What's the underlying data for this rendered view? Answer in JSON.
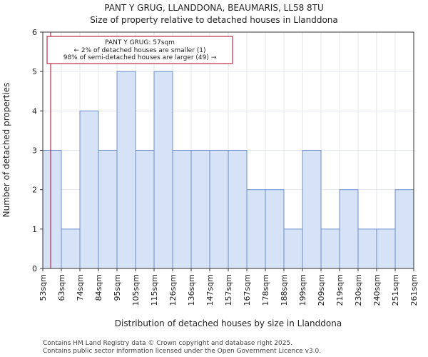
{
  "chart_data": {
    "type": "bar",
    "title_line1": "PANT Y GRUG, LLANDDONA, BEAUMARIS, LL58 8TU",
    "title_line2": "Size of property relative to detached houses in Llanddona",
    "xlabel": "Distribution of detached houses by size in Llanddona",
    "ylabel": "Number of detached properties",
    "ylim": [
      0,
      6
    ],
    "yticks": [
      "0",
      "1",
      "2",
      "3",
      "4",
      "5",
      "6"
    ],
    "edges": [
      "53sqm",
      "63sqm",
      "74sqm",
      "84sqm",
      "95sqm",
      "105sqm",
      "115sqm",
      "126sqm",
      "136sqm",
      "147sqm",
      "157sqm",
      "167sqm",
      "178sqm",
      "188sqm",
      "199sqm",
      "209sqm",
      "219sqm",
      "230sqm",
      "240sqm",
      "251sqm",
      "261sqm"
    ],
    "values": [
      3,
      1,
      4,
      3,
      5,
      3,
      5,
      3,
      3,
      3,
      3,
      2,
      2,
      1,
      3,
      1,
      2,
      1,
      1,
      2
    ],
    "subject_size_sqm": 57,
    "annotation": {
      "line1": "PANT Y GRUG: 57sqm",
      "line2": "← 2% of detached houses are smaller (1)",
      "line3": "98% of semi-detached houses are larger (49) →"
    },
    "colors": {
      "bar_fill": "#d6e2f5",
      "bar_stroke": "#6f8fcf",
      "marker": "#b00020",
      "annot_border": "#b00020"
    }
  },
  "footer": {
    "line1": "Contains HM Land Registry data © Crown copyright and database right 2025.",
    "line2": "Contains public sector information licensed under the Open Government Licence v3.0."
  }
}
